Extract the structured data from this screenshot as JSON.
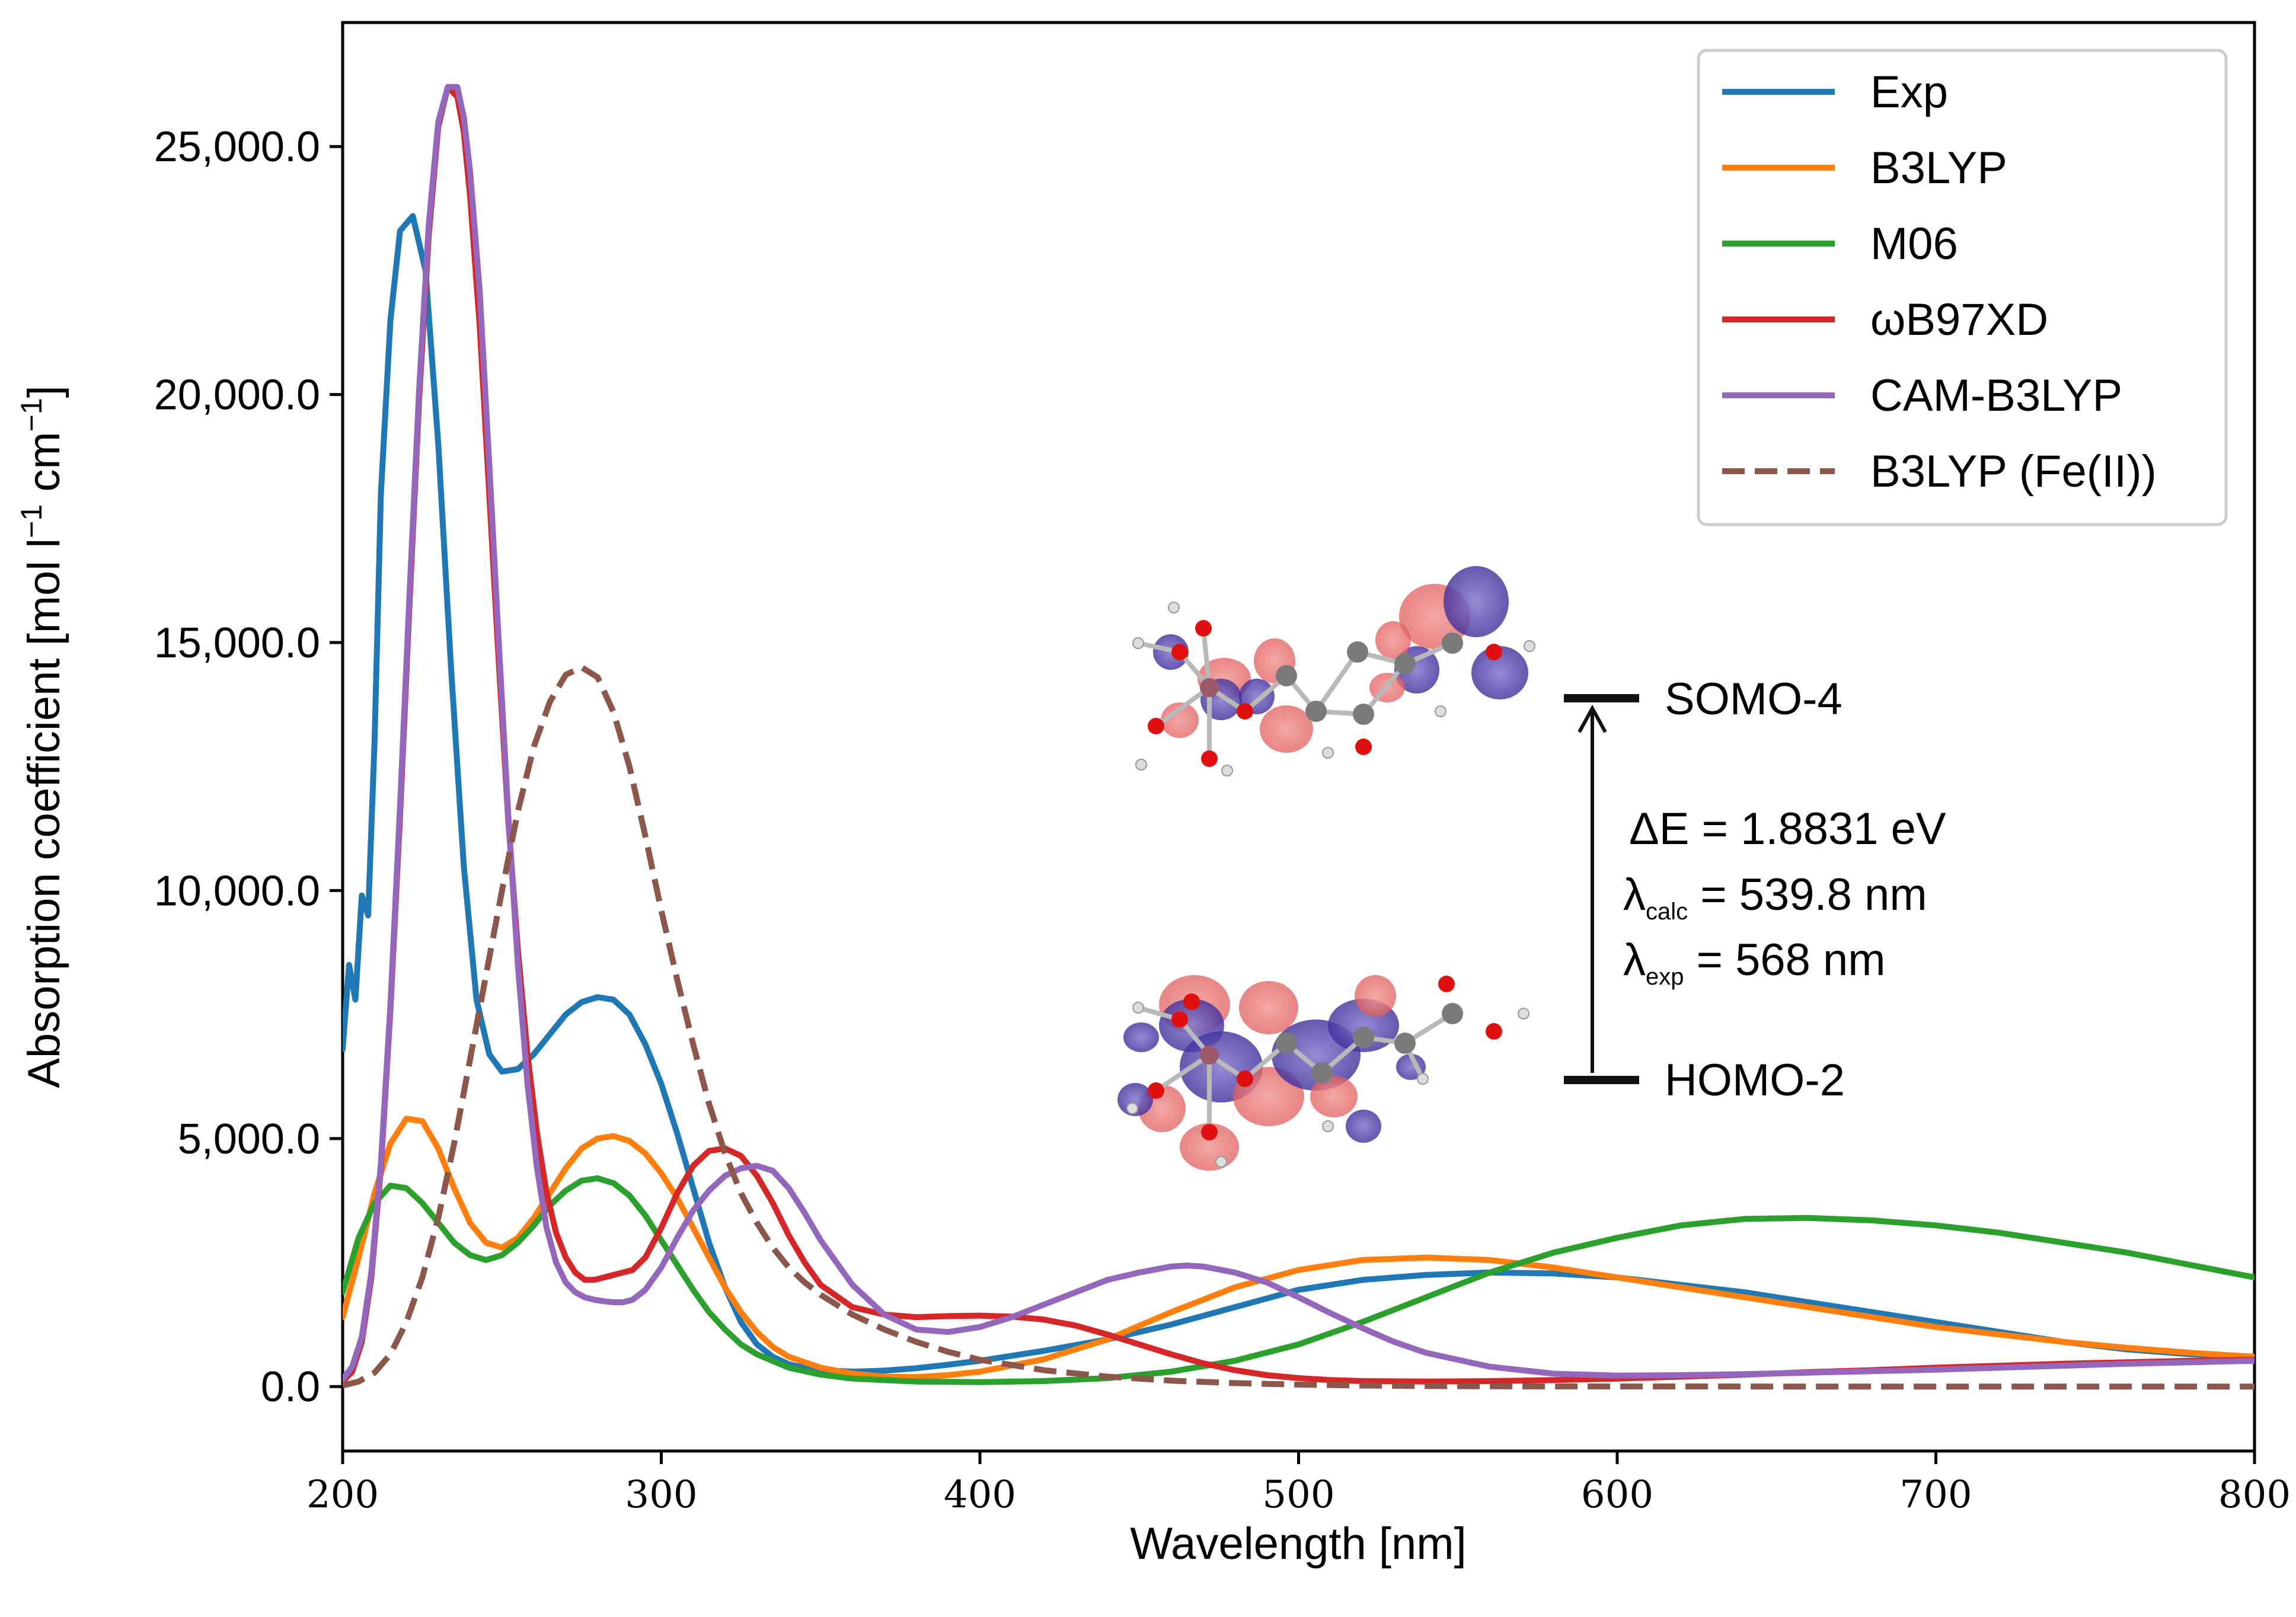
{
  "chart_data": {
    "type": "line",
    "title": "",
    "xlabel": "Wavelength [nm]",
    "ylabel": "Absorption coefficient [mol l",
    "ylabel_sup1": "−1",
    "ylabel_mid": " cm",
    "ylabel_sup2": "−1",
    "ylabel_end": "]",
    "xlim": [
      200,
      800
    ],
    "ylim": [
      -1300,
      27500
    ],
    "xticks": [
      200,
      300,
      400,
      500,
      600,
      700,
      800
    ],
    "xtick_labels": [
      "200",
      "300",
      "400",
      "500",
      "600",
      "700",
      "800"
    ],
    "yticks": [
      0,
      5000,
      10000,
      15000,
      20000,
      25000
    ],
    "ytick_labels": [
      "0.0",
      "5,000.0",
      "10,000.0",
      "15,000.0",
      "20,000.0",
      "25,000.0"
    ],
    "grid": false,
    "legend_position": "top-right",
    "series": [
      {
        "name": "Exp",
        "color": "#1f77b4",
        "dash": false,
        "x": [
          200,
          202,
          204,
          206,
          208,
          210,
          212,
          215,
          218,
          222,
          226,
          230,
          234,
          238,
          242,
          246,
          250,
          255,
          260,
          265,
          270,
          275,
          280,
          285,
          290,
          295,
          300,
          305,
          310,
          315,
          320,
          325,
          330,
          335,
          340,
          345,
          350,
          360,
          370,
          380,
          390,
          400,
          420,
          440,
          460,
          480,
          500,
          520,
          540,
          560,
          580,
          600,
          620,
          640,
          660,
          680,
          700,
          720,
          740,
          760,
          780,
          800
        ],
        "y": [
          6800,
          8500,
          7800,
          9900,
          9500,
          13000,
          18000,
          21500,
          23300,
          23600,
          22500,
          19000,
          14500,
          10500,
          7800,
          6700,
          6350,
          6400,
          6700,
          7100,
          7500,
          7750,
          7850,
          7800,
          7500,
          6900,
          6100,
          5100,
          4000,
          2900,
          2000,
          1300,
          850,
          600,
          450,
          380,
          330,
          300,
          320,
          370,
          440,
          520,
          720,
          950,
          1250,
          1600,
          1950,
          2150,
          2250,
          2300,
          2280,
          2200,
          2050,
          1900,
          1700,
          1500,
          1300,
          1100,
          900,
          750,
          650,
          600
        ]
      },
      {
        "name": "B3LYP",
        "color": "#ff7f0e",
        "dash": false,
        "x": [
          200,
          205,
          210,
          215,
          220,
          225,
          230,
          235,
          240,
          245,
          250,
          255,
          260,
          265,
          270,
          275,
          280,
          285,
          290,
          295,
          300,
          305,
          310,
          315,
          320,
          325,
          330,
          335,
          340,
          350,
          360,
          370,
          380,
          390,
          400,
          420,
          440,
          460,
          480,
          500,
          520,
          540,
          560,
          580,
          600,
          620,
          640,
          660,
          680,
          700,
          720,
          740,
          760,
          780,
          800
        ],
        "y": [
          1400,
          2600,
          3900,
          4900,
          5400,
          5350,
          4800,
          4000,
          3300,
          2900,
          2800,
          3000,
          3400,
          3900,
          4400,
          4800,
          5000,
          5050,
          4950,
          4700,
          4300,
          3800,
          3200,
          2600,
          2000,
          1500,
          1100,
          800,
          600,
          380,
          260,
          200,
          190,
          230,
          300,
          550,
          950,
          1500,
          2000,
          2350,
          2550,
          2600,
          2550,
          2400,
          2200,
          2000,
          1800,
          1600,
          1400,
          1200,
          1050,
          900,
          780,
          680,
          600
        ]
      },
      {
        "name": "M06",
        "color": "#2ca02c",
        "dash": false,
        "x": [
          200,
          205,
          210,
          215,
          220,
          225,
          230,
          235,
          240,
          245,
          250,
          255,
          260,
          265,
          270,
          275,
          280,
          285,
          290,
          295,
          300,
          305,
          310,
          315,
          320,
          325,
          330,
          340,
          350,
          360,
          380,
          400,
          420,
          440,
          460,
          480,
          500,
          520,
          540,
          560,
          580,
          600,
          620,
          640,
          660,
          680,
          700,
          720,
          740,
          760,
          780,
          800
        ],
        "y": [
          1900,
          3000,
          3700,
          4050,
          4000,
          3700,
          3300,
          2900,
          2650,
          2550,
          2650,
          2900,
          3250,
          3650,
          3950,
          4150,
          4200,
          4100,
          3850,
          3450,
          2950,
          2450,
          1950,
          1500,
          1150,
          850,
          650,
          380,
          240,
          160,
          100,
          90,
          110,
          170,
          300,
          520,
          850,
          1300,
          1800,
          2300,
          2700,
          3000,
          3250,
          3380,
          3400,
          3350,
          3250,
          3100,
          2900,
          2700,
          2450,
          2200
        ]
      },
      {
        "name": "ωB97XD",
        "color": "#d62728",
        "dash": false,
        "x": [
          200,
          203,
          206,
          209,
          212,
          215,
          218,
          221,
          224,
          227,
          230,
          233,
          236,
          238,
          240,
          243,
          246,
          249,
          252,
          255,
          258,
          261,
          264,
          267,
          270,
          273,
          276,
          279,
          282,
          285,
          288,
          291,
          295,
          300,
          305,
          310,
          315,
          320,
          325,
          330,
          335,
          340,
          345,
          350,
          360,
          370,
          380,
          390,
          400,
          410,
          420,
          430,
          440,
          450,
          460,
          470,
          480,
          490,
          500,
          510,
          520,
          540,
          560,
          580,
          600,
          620,
          640,
          660,
          680,
          700,
          720,
          740,
          760,
          780,
          800
        ],
        "y": [
          100,
          300,
          900,
          2200,
          4400,
          7600,
          11500,
          15800,
          19900,
          23200,
          25400,
          26200,
          26000,
          25300,
          24000,
          21400,
          18000,
          14600,
          11400,
          8800,
          6700,
          5100,
          3900,
          3100,
          2600,
          2300,
          2150,
          2150,
          2200,
          2250,
          2300,
          2350,
          2600,
          3200,
          3900,
          4450,
          4750,
          4800,
          4650,
          4250,
          3700,
          3050,
          2500,
          2050,
          1600,
          1450,
          1400,
          1420,
          1430,
          1410,
          1350,
          1230,
          1050,
          850,
          650,
          470,
          330,
          230,
          170,
          130,
          110,
          100,
          110,
          130,
          160,
          200,
          240,
          290,
          330,
          380,
          420,
          460,
          490,
          520,
          540
        ]
      },
      {
        "name": "CAM-B3LYP",
        "color": "#9467bd",
        "dash": false,
        "x": [
          200,
          203,
          206,
          209,
          212,
          215,
          218,
          221,
          224,
          227,
          230,
          233,
          236,
          238,
          240,
          243,
          246,
          249,
          252,
          255,
          258,
          261,
          264,
          267,
          270,
          273,
          276,
          279,
          282,
          285,
          288,
          291,
          295,
          300,
          305,
          310,
          315,
          320,
          325,
          330,
          335,
          340,
          345,
          350,
          360,
          370,
          380,
          390,
          400,
          410,
          420,
          430,
          440,
          450,
          460,
          465,
          470,
          480,
          490,
          500,
          510,
          520,
          530,
          540,
          560,
          580,
          600,
          620,
          640,
          660,
          680,
          700,
          720,
          740,
          760,
          780,
          800
        ],
        "y": [
          150,
          400,
          1000,
          2300,
          4500,
          7700,
          11700,
          16000,
          20100,
          23400,
          25500,
          26200,
          26200,
          25600,
          24500,
          22100,
          18600,
          15000,
          11500,
          8500,
          6100,
          4400,
          3200,
          2500,
          2100,
          1900,
          1800,
          1750,
          1720,
          1700,
          1700,
          1750,
          1950,
          2400,
          3000,
          3550,
          3950,
          4250,
          4400,
          4450,
          4350,
          4000,
          3500,
          2950,
          2050,
          1450,
          1150,
          1100,
          1200,
          1400,
          1650,
          1900,
          2150,
          2300,
          2420,
          2440,
          2420,
          2300,
          2100,
          1800,
          1480,
          1180,
          900,
          680,
          400,
          260,
          220,
          230,
          250,
          280,
          310,
          340,
          380,
          420,
          460,
          490,
          520
        ]
      },
      {
        "name": "B3LYP (Fe(II))",
        "color": "#8c564b",
        "dash": true,
        "x": [
          200,
          205,
          210,
          215,
          220,
          225,
          230,
          235,
          240,
          245,
          250,
          255,
          260,
          265,
          270,
          275,
          280,
          285,
          290,
          295,
          300,
          305,
          310,
          315,
          320,
          325,
          330,
          335,
          340,
          345,
          350,
          360,
          370,
          380,
          390,
          400,
          420,
          440,
          460,
          480,
          500,
          520,
          540,
          560,
          580,
          600,
          650,
          700,
          750,
          800
        ],
        "y": [
          20,
          100,
          280,
          650,
          1300,
          2200,
          3400,
          4900,
          6600,
          8300,
          10000,
          11600,
          12900,
          13800,
          14350,
          14500,
          14300,
          13600,
          12500,
          11100,
          9600,
          8200,
          6900,
          5700,
          4700,
          3900,
          3300,
          2800,
          2400,
          2100,
          1850,
          1450,
          1150,
          900,
          700,
          540,
          330,
          200,
          120,
          70,
          40,
          20,
          10,
          5,
          2,
          1,
          0,
          0,
          0,
          0
        ]
      }
    ],
    "annotations": {
      "upper_level": "SOMO-4",
      "lower_level": "HOMO-2",
      "delta_e": "ΔE = 1.8831 eV",
      "lambda_calc_sym": "λ",
      "lambda_calc_sub": "calc",
      "lambda_calc_val": " = 539.8 nm",
      "lambda_exp_sym": "λ",
      "lambda_exp_sub": "exp",
      "lambda_exp_val": " = 568 nm"
    }
  }
}
